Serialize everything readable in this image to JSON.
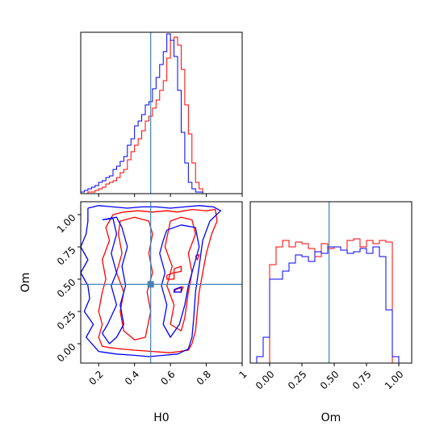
{
  "chart_data": {
    "type": "corner",
    "parameters": [
      "H0",
      "Om"
    ],
    "truth": {
      "H0": 0.49,
      "Om": 0.46
    },
    "truth_color": "#4682b4",
    "colors": {
      "red": "#ff0000",
      "blue": "#0000ff",
      "axes": "#000000"
    },
    "panels": {
      "hist_H0": {
        "xlim": [
          0.1,
          1.0
        ],
        "ylim": [
          0,
          1
        ],
        "tick_values": [
          0.2,
          0.4,
          0.6,
          0.8,
          1.0
        ],
        "bins": [
          0.1,
          0.12,
          0.14,
          0.16,
          0.18,
          0.2,
          0.22,
          0.24,
          0.26,
          0.28,
          0.3,
          0.32,
          0.34,
          0.36,
          0.38,
          0.4,
          0.42,
          0.44,
          0.46,
          0.48,
          0.5,
          0.52,
          0.54,
          0.56,
          0.58,
          0.6,
          0.62,
          0.64,
          0.66,
          0.68,
          0.7,
          0.72,
          0.74,
          0.76,
          0.78,
          0.8,
          0.82,
          0.84,
          0.86,
          0.88,
          0.9
        ],
        "series": [
          {
            "color": "red",
            "values": [
              0.0,
              0.0,
              0.01,
              0.01,
              0.02,
              0.03,
              0.04,
              0.06,
              0.07,
              0.08,
              0.1,
              0.13,
              0.15,
              0.21,
              0.26,
              0.3,
              0.34,
              0.39,
              0.45,
              0.48,
              0.53,
              0.58,
              0.64,
              0.7,
              0.84,
              0.95,
              0.97,
              0.92,
              0.77,
              0.55,
              0.37,
              0.19,
              0.07,
              0.03,
              0.0,
              0.0,
              0.0,
              0.0,
              0.0,
              0.0
            ]
          },
          {
            "color": "blue",
            "values": [
              0.01,
              0.02,
              0.03,
              0.04,
              0.05,
              0.07,
              0.08,
              0.1,
              0.11,
              0.15,
              0.17,
              0.2,
              0.23,
              0.3,
              0.34,
              0.42,
              0.45,
              0.49,
              0.55,
              0.57,
              0.65,
              0.72,
              0.8,
              0.88,
              0.99,
              0.95,
              0.85,
              0.64,
              0.38,
              0.19,
              0.07,
              0.03,
              0.01,
              0.01,
              0.0,
              0.0,
              0.0,
              0.0,
              0.0,
              0.0
            ]
          }
        ]
      },
      "hist_Om": {
        "xlim": [
          -0.15,
          1.1
        ],
        "ylim": [
          0,
          1
        ],
        "tick_values": [
          0.0,
          0.25,
          0.5,
          0.75,
          1.0
        ],
        "tick_labels": [
          "0.00",
          "0.25",
          "0.50",
          "0.75",
          "1.00"
        ],
        "bins": [
          -0.1,
          -0.05,
          0.0,
          0.05,
          0.1,
          0.15,
          0.2,
          0.25,
          0.3,
          0.35,
          0.4,
          0.45,
          0.5,
          0.55,
          0.6,
          0.65,
          0.7,
          0.75,
          0.8,
          0.85,
          0.9,
          0.95,
          1.0
        ],
        "series": [
          {
            "color": "red",
            "values": [
              0.0,
              0.0,
              0.61,
              0.72,
              0.76,
              0.72,
              0.75,
              0.74,
              0.71,
              0.66,
              0.74,
              0.71,
              0.72,
              0.7,
              0.76,
              0.77,
              0.72,
              0.76,
              0.74,
              0.76,
              0.75,
              0.0
            ]
          },
          {
            "color": "blue",
            "values": [
              0.04,
              0.16,
              0.52,
              0.52,
              0.57,
              0.62,
              0.67,
              0.66,
              0.63,
              0.69,
              0.68,
              0.72,
              0.72,
              0.7,
              0.68,
              0.69,
              0.71,
              0.68,
              0.72,
              0.66,
              0.33,
              0.04
            ]
          }
        ]
      },
      "contour": {
        "xlim": [
          0.1,
          1.0
        ],
        "ylim": [
          -0.15,
          1.1
        ],
        "xticks": [
          0.2,
          0.4,
          0.6,
          0.8,
          1.0
        ],
        "yticks": [
          0.0,
          0.25,
          0.5,
          0.75,
          1.0
        ],
        "ytick_labels": [
          "0.00",
          "0.25",
          "0.50",
          "0.75",
          "1.00"
        ],
        "truth_marker": {
          "H0": 0.49,
          "Om": 0.46
        },
        "series": [
          {
            "color": "red",
            "paths": [
              [
                [
                  0.28,
                  1.0
                ],
                [
                  0.34,
                  1.02
                ],
                [
                  0.42,
                  1.03
                ],
                [
                  0.5,
                  1.02
                ],
                [
                  0.58,
                  1.03
                ],
                [
                  0.64,
                  1.02
                ],
                [
                  0.72,
                  1.04
                ],
                [
                  0.8,
                  1.03
                ],
                [
                  0.85,
                  1.04
                ],
                [
                  0.86,
                  0.95
                ],
                [
                  0.83,
                  0.85
                ],
                [
                  0.8,
                  0.7
                ],
                [
                  0.78,
                  0.55
                ],
                [
                  0.76,
                  0.4
                ],
                [
                  0.75,
                  0.25
                ],
                [
                  0.74,
                  0.1
                ],
                [
                  0.72,
                  0.0
                ],
                [
                  0.7,
                  -0.05
                ],
                [
                  0.6,
                  -0.07
                ],
                [
                  0.5,
                  -0.06
                ],
                [
                  0.4,
                  -0.05
                ],
                [
                  0.32,
                  -0.04
                ],
                [
                  0.26,
                  -0.03
                ],
                [
                  0.22,
                  -0.02
                ],
                [
                  0.2,
                  0.05
                ],
                [
                  0.22,
                  0.15
                ],
                [
                  0.2,
                  0.25
                ],
                [
                  0.22,
                  0.4
                ],
                [
                  0.24,
                  0.5
                ],
                [
                  0.22,
                  0.65
                ],
                [
                  0.26,
                  0.8
                ],
                [
                  0.24,
                  0.9
                ],
                [
                  0.28,
                  1.0
                ]
              ],
              [
                [
                  0.32,
                  0.95
                ],
                [
                  0.4,
                  0.98
                ],
                [
                  0.48,
                  0.95
                ],
                [
                  0.5,
                  0.85
                ],
                [
                  0.48,
                  0.7
                ],
                [
                  0.5,
                  0.55
                ],
                [
                  0.47,
                  0.4
                ],
                [
                  0.49,
                  0.25
                ],
                [
                  0.46,
                  0.05
                ],
                [
                  0.4,
                  0.03
                ],
                [
                  0.34,
                  0.1
                ],
                [
                  0.32,
                  0.25
                ],
                [
                  0.34,
                  0.4
                ],
                [
                  0.3,
                  0.55
                ],
                [
                  0.33,
                  0.7
                ],
                [
                  0.31,
                  0.85
                ],
                [
                  0.32,
                  0.95
                ]
              ],
              [
                [
                  0.6,
                  0.95
                ],
                [
                  0.66,
                  0.98
                ],
                [
                  0.72,
                  0.96
                ],
                [
                  0.74,
                  0.85
                ],
                [
                  0.7,
                  0.7
                ],
                [
                  0.72,
                  0.55
                ],
                [
                  0.7,
                  0.4
                ],
                [
                  0.68,
                  0.2
                ],
                [
                  0.66,
                  0.1
                ],
                [
                  0.6,
                  0.15
                ],
                [
                  0.62,
                  0.3
                ],
                [
                  0.58,
                  0.45
                ],
                [
                  0.61,
                  0.6
                ],
                [
                  0.57,
                  0.75
                ],
                [
                  0.6,
                  0.95
                ]
              ],
              [
                [
                  0.62,
                  0.58
                ],
                [
                  0.66,
                  0.6
                ],
                [
                  0.66,
                  0.56
                ],
                [
                  0.62,
                  0.55
                ],
                [
                  0.62,
                  0.58
                ]
              ],
              [
                [
                  0.58,
                  0.53
                ],
                [
                  0.62,
                  0.55
                ],
                [
                  0.62,
                  0.5
                ],
                [
                  0.58,
                  0.5
                ],
                [
                  0.58,
                  0.53
                ]
              ],
              [
                [
                  0.63,
                  0.42
                ],
                [
                  0.67,
                  0.44
                ],
                [
                  0.66,
                  0.4
                ],
                [
                  0.62,
                  0.4
                ],
                [
                  0.63,
                  0.42
                ]
              ],
              [
                [
                  0.74,
                  0.68
                ],
                [
                  0.76,
                  0.69
                ],
                [
                  0.75,
                  0.65
                ],
                [
                  0.74,
                  0.68
                ]
              ]
            ]
          },
          {
            "color": "blue",
            "paths": [
              [
                [
                  0.14,
                  1.05
                ],
                [
                  0.2,
                  1.07
                ],
                [
                  0.28,
                  1.06
                ],
                [
                  0.36,
                  1.05
                ],
                [
                  0.44,
                  1.06
                ],
                [
                  0.52,
                  1.06
                ],
                [
                  0.6,
                  1.05
                ],
                [
                  0.68,
                  1.06
                ],
                [
                  0.76,
                  1.07
                ],
                [
                  0.84,
                  1.06
                ],
                [
                  0.88,
                  1.03
                ],
                [
                  0.82,
                  0.95
                ],
                [
                  0.78,
                  0.8
                ],
                [
                  0.76,
                  0.6
                ],
                [
                  0.74,
                  0.4
                ],
                [
                  0.73,
                  0.2
                ],
                [
                  0.72,
                  0.05
                ],
                [
                  0.7,
                  -0.04
                ],
                [
                  0.64,
                  -0.08
                ],
                [
                  0.56,
                  -0.09
                ],
                [
                  0.48,
                  -0.1
                ],
                [
                  0.4,
                  -0.09
                ],
                [
                  0.3,
                  -0.08
                ],
                [
                  0.2,
                  -0.06
                ],
                [
                  0.13,
                  0.05
                ],
                [
                  0.17,
                  0.15
                ],
                [
                  0.12,
                  0.25
                ],
                [
                  0.15,
                  0.35
                ],
                [
                  0.14,
                  0.45
                ],
                [
                  0.1,
                  0.55
                ],
                [
                  0.14,
                  0.65
                ],
                [
                  0.1,
                  0.75
                ],
                [
                  0.13,
                  0.85
                ],
                [
                  0.14,
                  0.95
                ],
                [
                  0.14,
                  1.05
                ]
              ],
              [
                [
                  0.22,
                  0.96
                ],
                [
                  0.28,
                  0.97
                ],
                [
                  0.3,
                  0.85
                ],
                [
                  0.27,
                  0.7
                ],
                [
                  0.3,
                  0.55
                ],
                [
                  0.27,
                  0.45
                ],
                [
                  0.3,
                  0.3
                ],
                [
                  0.25,
                  0.15
                ],
                [
                  0.22,
                  0.08
                ],
                [
                  0.26,
                  0.0
                ],
                [
                  0.3,
                  0.05
                ],
                [
                  0.34,
                  0.15
                ],
                [
                  0.32,
                  0.3
                ],
                [
                  0.35,
                  0.45
                ],
                [
                  0.33,
                  0.6
                ],
                [
                  0.36,
                  0.75
                ],
                [
                  0.33,
                  0.9
                ],
                [
                  0.3,
                  0.98
                ],
                [
                  0.22,
                  0.96
                ]
              ],
              [
                [
                  0.58,
                  0.88
                ],
                [
                  0.66,
                  0.92
                ],
                [
                  0.74,
                  0.9
                ],
                [
                  0.76,
                  0.75
                ],
                [
                  0.73,
                  0.6
                ],
                [
                  0.7,
                  0.45
                ],
                [
                  0.68,
                  0.3
                ],
                [
                  0.65,
                  0.15
                ],
                [
                  0.6,
                  0.05
                ],
                [
                  0.56,
                  0.15
                ],
                [
                  0.58,
                  0.3
                ],
                [
                  0.55,
                  0.45
                ],
                [
                  0.57,
                  0.55
                ],
                [
                  0.54,
                  0.7
                ],
                [
                  0.56,
                  0.8
                ],
                [
                  0.58,
                  0.88
                ]
              ],
              [
                [
                  0.62,
                  0.42
                ],
                [
                  0.66,
                  0.44
                ],
                [
                  0.66,
                  0.4
                ],
                [
                  0.62,
                  0.4
                ],
                [
                  0.62,
                  0.42
                ]
              ]
            ]
          }
        ]
      }
    },
    "labels": {
      "x_contour": "H0",
      "y_contour": "Om",
      "x_hist_Om": "Om"
    }
  }
}
